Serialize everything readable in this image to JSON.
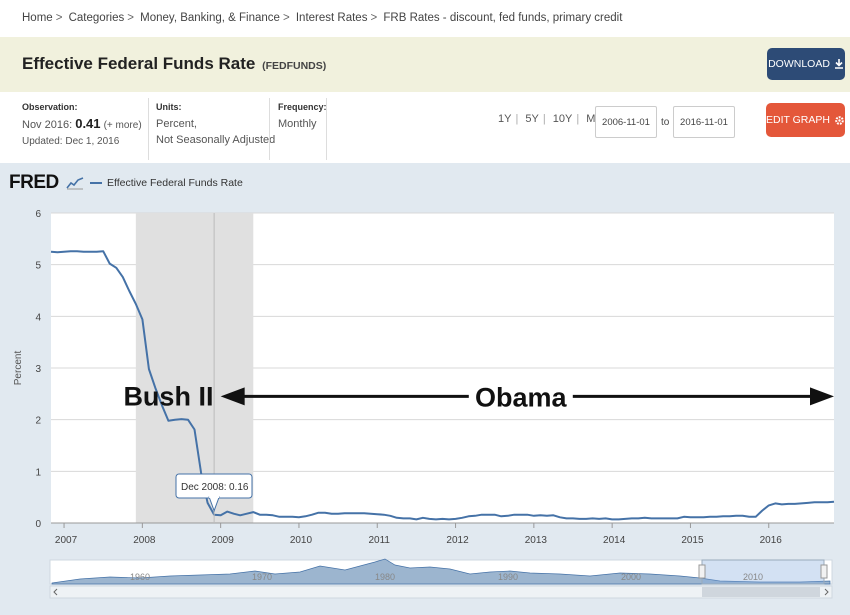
{
  "breadcrumb": [
    "Home",
    "Categories",
    "Money, Banking, & Finance",
    "Interest Rates",
    "FRB Rates - discount, fed funds, primary credit"
  ],
  "header": {
    "title": "Effective Federal Funds Rate",
    "code": "(FEDFUNDS)",
    "download_label": "DOWNLOAD",
    "edit_label": "EDIT GRAPH"
  },
  "meta": {
    "observation_label": "Observation:",
    "observation_date": "Nov 2016:",
    "observation_value": "0.41",
    "observation_more": "(+ more)",
    "updated": "Updated: Dec 1, 2016",
    "units_label": "Units:",
    "units_line1": "Percent,",
    "units_line2": "Not Seasonally Adjusted",
    "frequency_label": "Frequency:",
    "frequency_value": "Monthly"
  },
  "range": {
    "links": [
      "1Y",
      "5Y",
      "10Y",
      "Max"
    ],
    "start": "2006-11-01",
    "to_label": "to",
    "end": "2016-11-01"
  },
  "legend": {
    "logo": "FRED",
    "series_name": "Effective Federal Funds Rate"
  },
  "colors": {
    "line": "#4572a7",
    "recession": "#e0e0e0",
    "accent_blue": "#2d4b76",
    "accent_red": "#e4573a"
  },
  "chart_data": {
    "type": "line",
    "ylabel": "Percent",
    "ylim": [
      0,
      6
    ],
    "yticks": [
      0,
      1,
      2,
      3,
      4,
      5,
      6
    ],
    "xlim": [
      "2006-11",
      "2016-11"
    ],
    "xticks": [
      "2007",
      "2008",
      "2009",
      "2010",
      "2011",
      "2012",
      "2013",
      "2014",
      "2015",
      "2016"
    ],
    "grid": true,
    "recession": {
      "start": "2007-12",
      "end": "2009-06"
    },
    "annotations": [
      {
        "text": "Bush II",
        "x": "2008-05",
        "y": 2.45
      },
      {
        "text": "Obama",
        "x": "2012-11",
        "y": 2.45,
        "arrow_from": "2009-01",
        "arrow_to": "2016-11"
      }
    ],
    "tooltip": {
      "label": "Dec 2008:",
      "value": "0.16",
      "x": "2008-12"
    },
    "series": [
      {
        "name": "Effective Federal Funds Rate",
        "x": [
          "2006-11",
          "2006-12",
          "2007-01",
          "2007-02",
          "2007-03",
          "2007-04",
          "2007-05",
          "2007-06",
          "2007-07",
          "2007-08",
          "2007-09",
          "2007-10",
          "2007-11",
          "2007-12",
          "2008-01",
          "2008-02",
          "2008-03",
          "2008-04",
          "2008-05",
          "2008-06",
          "2008-07",
          "2008-08",
          "2008-09",
          "2008-10",
          "2008-11",
          "2008-12",
          "2009-01",
          "2009-02",
          "2009-03",
          "2009-04",
          "2009-05",
          "2009-06",
          "2009-07",
          "2009-08",
          "2009-09",
          "2009-10",
          "2009-11",
          "2009-12",
          "2010-01",
          "2010-02",
          "2010-03",
          "2010-04",
          "2010-05",
          "2010-06",
          "2010-07",
          "2010-08",
          "2010-09",
          "2010-10",
          "2010-11",
          "2010-12",
          "2011-01",
          "2011-02",
          "2011-03",
          "2011-04",
          "2011-05",
          "2011-06",
          "2011-07",
          "2011-08",
          "2011-09",
          "2011-10",
          "2011-11",
          "2011-12",
          "2012-01",
          "2012-02",
          "2012-03",
          "2012-04",
          "2012-05",
          "2012-06",
          "2012-07",
          "2012-08",
          "2012-09",
          "2012-10",
          "2012-11",
          "2012-12",
          "2013-01",
          "2013-02",
          "2013-03",
          "2013-04",
          "2013-05",
          "2013-06",
          "2013-07",
          "2013-08",
          "2013-09",
          "2013-10",
          "2013-11",
          "2013-12",
          "2014-01",
          "2014-02",
          "2014-03",
          "2014-04",
          "2014-05",
          "2014-06",
          "2014-07",
          "2014-08",
          "2014-09",
          "2014-10",
          "2014-11",
          "2014-12",
          "2015-01",
          "2015-02",
          "2015-03",
          "2015-04",
          "2015-05",
          "2015-06",
          "2015-07",
          "2015-08",
          "2015-09",
          "2015-10",
          "2015-11",
          "2015-12",
          "2016-01",
          "2016-02",
          "2016-03",
          "2016-04",
          "2016-05",
          "2016-06",
          "2016-07",
          "2016-08",
          "2016-09",
          "2016-10",
          "2016-11"
        ],
        "values": [
          5.25,
          5.24,
          5.25,
          5.26,
          5.26,
          5.25,
          5.25,
          5.25,
          5.26,
          5.02,
          4.94,
          4.76,
          4.49,
          4.24,
          3.94,
          2.98,
          2.61,
          2.28,
          1.98,
          2.0,
          2.01,
          2.0,
          1.81,
          0.97,
          0.39,
          0.16,
          0.15,
          0.22,
          0.18,
          0.15,
          0.18,
          0.21,
          0.16,
          0.16,
          0.15,
          0.12,
          0.12,
          0.12,
          0.11,
          0.13,
          0.16,
          0.2,
          0.2,
          0.18,
          0.18,
          0.19,
          0.19,
          0.19,
          0.19,
          0.18,
          0.17,
          0.16,
          0.14,
          0.1,
          0.09,
          0.09,
          0.07,
          0.1,
          0.08,
          0.07,
          0.08,
          0.07,
          0.08,
          0.1,
          0.13,
          0.14,
          0.16,
          0.16,
          0.16,
          0.13,
          0.14,
          0.16,
          0.16,
          0.16,
          0.14,
          0.15,
          0.14,
          0.15,
          0.11,
          0.09,
          0.09,
          0.08,
          0.08,
          0.09,
          0.08,
          0.09,
          0.07,
          0.07,
          0.08,
          0.09,
          0.09,
          0.1,
          0.09,
          0.09,
          0.09,
          0.09,
          0.09,
          0.12,
          0.11,
          0.11,
          0.11,
          0.12,
          0.12,
          0.13,
          0.13,
          0.14,
          0.14,
          0.12,
          0.12,
          0.24,
          0.34,
          0.38,
          0.36,
          0.37,
          0.37,
          0.38,
          0.39,
          0.4,
          0.4,
          0.4,
          0.41
        ]
      }
    ]
  },
  "navigator": {
    "ticks": [
      "1960",
      "1970",
      "1980",
      "1990",
      "2000",
      "2010"
    ]
  }
}
